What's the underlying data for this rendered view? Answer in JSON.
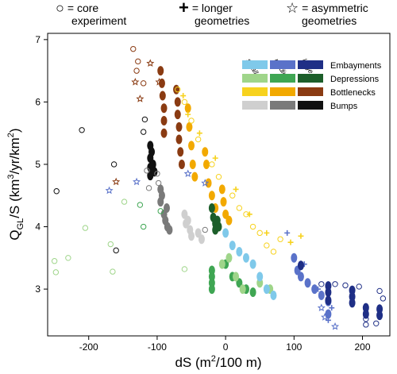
{
  "marker_legend": {
    "core": {
      "symbol": "○",
      "text_a": "= core",
      "text_b": "experiment"
    },
    "longer": {
      "symbol": "+",
      "text_a": "= longer",
      "text_b": "geometries"
    },
    "asym": {
      "symbol": "☆",
      "text_a": "= asymmetric",
      "text_b": "geometries"
    }
  },
  "size_labels": [
    "small",
    "medium",
    "large"
  ],
  "color_legend": [
    {
      "name": "Embayments",
      "colors": [
        "#7fc9ea",
        "#5a72c9",
        "#1f2f86"
      ]
    },
    {
      "name": "Depressions",
      "colors": [
        "#9fd58a",
        "#3fa653",
        "#1c5e2a"
      ]
    },
    {
      "name": "Bottlenecks",
      "colors": [
        "#f7d21e",
        "#f2a900",
        "#8a3b12"
      ]
    },
    {
      "name": "Bumps",
      "colors": [
        "#cfcfcf",
        "#7a7a7a",
        "#111111"
      ]
    }
  ],
  "chart_data": {
    "type": "scatter",
    "xlabel_main": "dS (m",
    "xlabel_sup": "2",
    "xlabel_end": "/100 m)",
    "ylabel_main": "Q",
    "ylabel_sub": "GL",
    "ylabel_mid": "/S (km",
    "ylabel_sup1": "3",
    "ylabel_mid2": "/yr/km",
    "ylabel_sup2": "2",
    "ylabel_end": ")",
    "xlim": [
      -260,
      240
    ],
    "ylim": [
      2.25,
      7.1
    ],
    "xticks": [
      -200,
      -100,
      0,
      100,
      200
    ],
    "yticks": [
      3,
      4,
      5,
      6,
      7
    ],
    "series": [
      {
        "group": "Bumps",
        "size": "large",
        "color": "#111111",
        "marker": "circle",
        "points": [
          [
            -247,
            4.57
          ],
          [
            -210,
            5.55
          ],
          [
            -163,
            5.0
          ],
          [
            -160,
            3.62
          ],
          [
            -120,
            5.52
          ],
          [
            -118,
            5.72
          ]
        ]
      },
      {
        "group": "Bumps",
        "size": "large",
        "color": "#111111",
        "marker": "filled",
        "points": [
          [
            -110,
            5.3
          ],
          [
            -110,
            5.1
          ],
          [
            -110,
            4.95
          ],
          [
            -110,
            4.82
          ],
          [
            -108,
            5.2
          ],
          [
            -106,
            5.0
          ],
          [
            -104,
            4.88
          ]
        ]
      },
      {
        "group": "Bumps",
        "size": "medium",
        "color": "#7a7a7a",
        "marker": "filled",
        "points": [
          [
            -95,
            4.6
          ],
          [
            -95,
            4.4
          ],
          [
            -93,
            4.5
          ],
          [
            -90,
            4.2
          ],
          [
            -88,
            4.1
          ],
          [
            -86,
            4.3
          ],
          [
            -85,
            4.0
          ],
          [
            -82,
            3.95
          ]
        ]
      },
      {
        "group": "Bumps",
        "size": "small",
        "color": "#cfcfcf",
        "marker": "filled",
        "points": [
          [
            -60,
            4.2
          ],
          [
            -58,
            4.05
          ],
          [
            -55,
            4.1
          ],
          [
            -52,
            3.95
          ],
          [
            -50,
            3.85
          ],
          [
            -40,
            3.9
          ],
          [
            -35,
            3.8
          ]
        ]
      },
      {
        "group": "Bumps",
        "size": "medium",
        "color": "#7a7a7a",
        "marker": "circle",
        "points": [
          [
            -115,
            4.9
          ],
          [
            -112,
            4.62
          ],
          [
            -100,
            4.85
          ],
          [
            -98,
            4.7
          ],
          [
            -30,
            3.95
          ]
        ]
      },
      {
        "group": "Bottlenecks",
        "size": "large",
        "color": "#8a3b12",
        "marker": "filled",
        "points": [
          [
            -95,
            6.5
          ],
          [
            -93,
            6.3
          ],
          [
            -92,
            6.1
          ],
          [
            -90,
            5.9
          ],
          [
            -90,
            5.7
          ],
          [
            -90,
            5.5
          ],
          [
            -72,
            6.2
          ],
          [
            -70,
            6.0
          ],
          [
            -70,
            5.8
          ],
          [
            -68,
            5.6
          ],
          [
            -68,
            5.4
          ],
          [
            -66,
            5.2
          ],
          [
            -64,
            5.0
          ]
        ]
      },
      {
        "group": "Bottlenecks",
        "size": "large",
        "color": "#8a3b12",
        "marker": "circle",
        "points": [
          [
            -135,
            6.85
          ],
          [
            -128,
            6.65
          ],
          [
            -130,
            6.5
          ],
          [
            -120,
            6.3
          ]
        ]
      },
      {
        "group": "Bottlenecks",
        "size": "large",
        "color": "#8a3b12",
        "marker": "star",
        "points": [
          [
            -132,
            6.32
          ],
          [
            -125,
            6.05
          ],
          [
            -110,
            6.62
          ],
          [
            -97,
            6.32
          ],
          [
            -160,
            4.72
          ]
        ]
      },
      {
        "group": "Bottlenecks",
        "size": "medium",
        "color": "#f2a900",
        "marker": "filled",
        "points": [
          [
            -55,
            5.9
          ],
          [
            -53,
            5.6
          ],
          [
            -50,
            5.3
          ],
          [
            -48,
            5.0
          ],
          [
            -45,
            4.8
          ],
          [
            -30,
            5.2
          ],
          [
            -28,
            5.0
          ],
          [
            -25,
            4.7
          ],
          [
            -20,
            4.5
          ],
          [
            -15,
            4.3
          ],
          [
            -5,
            4.6
          ],
          [
            -3,
            4.4
          ],
          [
            0,
            4.2
          ],
          [
            5,
            4.1
          ]
        ]
      },
      {
        "group": "Bottlenecks",
        "size": "small",
        "color": "#f7d21e",
        "marker": "circle",
        "points": [
          [
            -70,
            6.2
          ],
          [
            -60,
            6.0
          ],
          [
            -50,
            5.7
          ],
          [
            -40,
            5.4
          ],
          [
            -20,
            5.0
          ],
          [
            -10,
            4.8
          ],
          [
            10,
            4.5
          ],
          [
            20,
            4.3
          ],
          [
            30,
            4.2
          ],
          [
            40,
            4.0
          ],
          [
            50,
            3.9
          ],
          [
            60,
            3.7
          ],
          [
            70,
            3.6
          ],
          [
            80,
            3.8
          ]
        ]
      },
      {
        "group": "Bottlenecks",
        "size": "small",
        "color": "#f7d21e",
        "marker": "plus",
        "points": [
          [
            -62,
            6.1
          ],
          [
            -55,
            5.8
          ],
          [
            -38,
            5.5
          ],
          [
            -15,
            5.1
          ],
          [
            15,
            4.6
          ],
          [
            35,
            4.2
          ],
          [
            60,
            3.9
          ],
          [
            95,
            3.75
          ],
          [
            110,
            3.85
          ]
        ]
      },
      {
        "group": "Depressions",
        "size": "large",
        "color": "#1c5e2a",
        "marker": "filled",
        "points": [
          [
            -20,
            4.3
          ],
          [
            -18,
            4.15
          ],
          [
            -15,
            4.05
          ],
          [
            -15,
            3.95
          ],
          [
            -12,
            4.1
          ],
          [
            -10,
            4.0
          ]
        ]
      },
      {
        "group": "Depressions",
        "size": "medium",
        "color": "#3fa653",
        "marker": "filled",
        "points": [
          [
            -20,
            3.3
          ],
          [
            -20,
            3.2
          ],
          [
            -20,
            3.1
          ],
          [
            -20,
            3.0
          ],
          [
            0,
            3.4
          ],
          [
            10,
            3.2
          ],
          [
            20,
            3.1
          ],
          [
            30,
            3.0
          ],
          [
            40,
            2.95
          ]
        ]
      },
      {
        "group": "Depressions",
        "size": "small",
        "color": "#9fd58a",
        "marker": "filled",
        "points": [
          [
            -5,
            3.4
          ],
          [
            5,
            3.5
          ],
          [
            15,
            3.2
          ],
          [
            25,
            3.0
          ],
          [
            50,
            3.1
          ],
          [
            65,
            3.0
          ]
        ]
      },
      {
        "group": "Depressions",
        "size": "small",
        "color": "#9fd58a",
        "marker": "circle",
        "points": [
          [
            -250,
            3.45
          ],
          [
            -248,
            3.27
          ],
          [
            -230,
            3.5
          ],
          [
            -205,
            3.98
          ],
          [
            -168,
            3.72
          ],
          [
            -165,
            3.28
          ],
          [
            -148,
            4.4
          ],
          [
            -60,
            3.32
          ]
        ]
      },
      {
        "group": "Depressions",
        "size": "medium",
        "color": "#3fa653",
        "marker": "circle",
        "points": [
          [
            -125,
            4.35
          ],
          [
            -120,
            4.0
          ],
          [
            -95,
            4.25
          ]
        ]
      },
      {
        "group": "Embayments",
        "size": "small",
        "color": "#7fc9ea",
        "marker": "filled",
        "points": [
          [
            0,
            3.9
          ],
          [
            10,
            3.7
          ],
          [
            20,
            3.6
          ],
          [
            30,
            3.5
          ],
          [
            40,
            3.4
          ],
          [
            50,
            3.2
          ],
          [
            60,
            3.0
          ],
          [
            70,
            2.9
          ]
        ]
      },
      {
        "group": "Embayments",
        "size": "medium",
        "color": "#5a72c9",
        "marker": "filled",
        "points": [
          [
            100,
            3.5
          ],
          [
            105,
            3.3
          ],
          [
            110,
            3.2
          ],
          [
            120,
            3.1
          ],
          [
            130,
            3.0
          ],
          [
            140,
            2.9
          ],
          [
            150,
            2.8
          ],
          [
            150,
            2.6
          ]
        ]
      },
      {
        "group": "Embayments",
        "size": "medium",
        "color": "#5a72c9",
        "marker": "plus",
        "points": [
          [
            90,
            3.9
          ],
          [
            115,
            3.4
          ],
          [
            135,
            3.0
          ],
          [
            155,
            2.7
          ],
          [
            150,
            2.5
          ]
        ]
      },
      {
        "group": "Embayments",
        "size": "medium",
        "color": "#5a72c9",
        "marker": "star",
        "points": [
          [
            -170,
            4.58
          ],
          [
            -130,
            4.72
          ],
          [
            -55,
            4.85
          ],
          [
            -30,
            4.7
          ],
          [
            145,
            2.55
          ],
          [
            160,
            2.4
          ],
          [
            140,
            2.7
          ]
        ]
      },
      {
        "group": "Embayments",
        "size": "large",
        "color": "#1f2f86",
        "marker": "filled",
        "points": [
          [
            110,
            3.38
          ],
          [
            150,
            3.05
          ],
          [
            150,
            2.95
          ],
          [
            150,
            2.82
          ],
          [
            185,
            2.98
          ],
          [
            185,
            2.88
          ],
          [
            185,
            2.78
          ],
          [
            205,
            2.7
          ],
          [
            205,
            2.6
          ],
          [
            225,
            2.68
          ],
          [
            225,
            2.58
          ]
        ]
      },
      {
        "group": "Embayments",
        "size": "large",
        "color": "#1f2f86",
        "marker": "circle",
        "points": [
          [
            140,
            3.08
          ],
          [
            160,
            3.08
          ],
          [
            175,
            3.06
          ],
          [
            195,
            3.04
          ],
          [
            205,
            2.52
          ],
          [
            205,
            2.43
          ],
          [
            220,
            2.45
          ],
          [
            225,
            2.97
          ],
          [
            230,
            2.85
          ]
        ]
      }
    ]
  }
}
